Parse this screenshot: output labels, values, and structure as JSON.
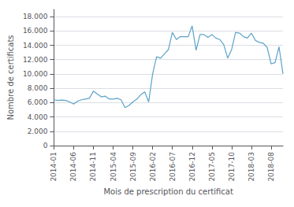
{
  "chart_data": {
    "type": "line",
    "x_label": "Mois de prescription du certificat",
    "y_label": "Nombre de certificats",
    "categories": [
      "2014-01",
      null,
      null,
      null,
      null,
      "2014-06",
      null,
      null,
      null,
      null,
      "2014-11",
      null,
      null,
      null,
      null,
      "2015-04",
      null,
      null,
      null,
      null,
      "2015-09",
      null,
      null,
      null,
      null,
      "2016-02",
      null,
      null,
      null,
      null,
      "2016-07",
      null,
      null,
      null,
      null,
      "2016-12",
      null,
      null,
      null,
      null,
      "2017-05",
      null,
      null,
      null,
      null,
      "2017-10",
      null,
      null,
      null,
      null,
      "2018-03",
      null,
      null,
      null,
      null,
      "2018-08",
      null,
      null,
      null
    ],
    "values": [
      6400,
      6300,
      6350,
      6300,
      6100,
      5800,
      6200,
      6400,
      6500,
      6600,
      7600,
      7200,
      6800,
      6900,
      6500,
      6500,
      6600,
      6400,
      5300,
      5600,
      6100,
      6500,
      7100,
      7500,
      6100,
      10000,
      12400,
      12200,
      12800,
      13400,
      15800,
      14800,
      15200,
      15200,
      15200,
      16700,
      13300,
      15500,
      15500,
      15100,
      15500,
      15000,
      14800,
      14100,
      12200,
      13400,
      15800,
      15700,
      15200,
      15000,
      15700,
      14700,
      14400,
      14300,
      13700,
      11400,
      11600,
      13800,
      10000
    ],
    "color": "#5ba3c9",
    "ylim": [
      0,
      19000
    ],
    "yticks": [
      0,
      {
        "value": 2000,
        "label": "2.000"
      },
      {
        "value": 4000,
        "label": "4.000"
      },
      {
        "value": 6000,
        "label": "6.000"
      },
      {
        "value": 8000,
        "label": "8.000"
      },
      {
        "value": 10000,
        "label": "10.000"
      },
      {
        "value": 12000,
        "label": "12.000"
      },
      {
        "value": 14000,
        "label": "14.000"
      },
      {
        "value": 16000,
        "label": "16.000"
      },
      {
        "value": 18000,
        "label": "18.000"
      }
    ],
    "grid": true
  }
}
